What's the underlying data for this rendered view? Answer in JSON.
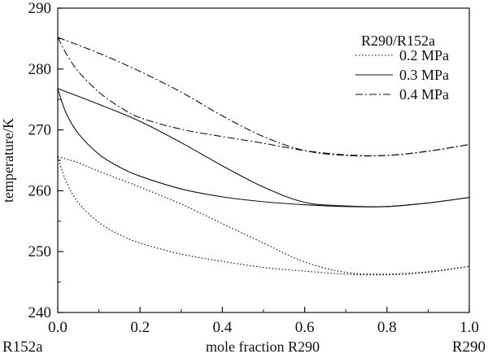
{
  "chart_data": {
    "type": "line",
    "xlabel": "mole fraction R290",
    "ylabel": "temperature/K",
    "xlim": [
      0.0,
      1.0
    ],
    "ylim": [
      240,
      290
    ],
    "xticks": [
      0.0,
      0.2,
      0.4,
      0.6,
      0.8,
      1.0
    ],
    "yticks": [
      240,
      250,
      260,
      270,
      280,
      290
    ],
    "x_tick_labels": [
      "0.0",
      "0.2",
      "0.4",
      "0.6",
      "0.8",
      "1.0"
    ],
    "y_tick_labels": [
      "240",
      "250",
      "260",
      "270",
      "280",
      "290"
    ],
    "x_end_labels": {
      "left": "R152a",
      "right": "R290"
    },
    "grid": false,
    "legend": {
      "title": "R290/R152a",
      "position": "top-right"
    },
    "series": [
      {
        "name": "0.2 MPa",
        "style": "dotted",
        "color": "#111111",
        "curves": [
          {
            "role": "dew",
            "x": [
              0.0,
              0.05,
              0.1,
              0.2,
              0.3,
              0.4,
              0.5,
              0.6,
              0.7,
              0.8,
              0.9,
              1.0
            ],
            "y": [
              265.6,
              264.6,
              263.2,
              260.6,
              257.8,
              254.6,
              251.4,
              248.3,
              246.6,
              246.3,
              246.7,
              247.6
            ]
          },
          {
            "role": "bubble",
            "x": [
              0.0,
              0.02,
              0.05,
              0.1,
              0.15,
              0.2,
              0.3,
              0.4,
              0.5,
              0.6,
              0.7,
              0.8,
              0.9,
              1.0
            ],
            "y": [
              265.6,
              261.6,
              258.0,
              254.8,
              252.8,
              251.4,
              249.6,
              248.4,
              247.4,
              246.8,
              246.3,
              246.2,
              246.6,
              247.6
            ]
          }
        ]
      },
      {
        "name": "0.3 MPa",
        "style": "solid",
        "color": "#111111",
        "curves": [
          {
            "role": "dew",
            "x": [
              0.0,
              0.1,
              0.2,
              0.3,
              0.4,
              0.5,
              0.6,
              0.7,
              0.8,
              0.9,
              1.0
            ],
            "y": [
              276.8,
              274.2,
              271.4,
              267.9,
              264.1,
              260.6,
              258.1,
              257.5,
              257.4,
              258.0,
              258.9
            ]
          },
          {
            "role": "bubble",
            "x": [
              0.0,
              0.02,
              0.05,
              0.1,
              0.15,
              0.2,
              0.3,
              0.4,
              0.5,
              0.6,
              0.7,
              0.8,
              0.9,
              1.0
            ],
            "y": [
              276.8,
              272.8,
              269.4,
              266.0,
              263.9,
              262.4,
              260.3,
              259.0,
              258.2,
              257.7,
              257.4,
              257.4,
              258.0,
              258.9
            ]
          }
        ]
      },
      {
        "name": "0.4 MPa",
        "style": "dash-dot",
        "color": "#111111",
        "curves": [
          {
            "role": "dew",
            "x": [
              0.0,
              0.1,
              0.2,
              0.3,
              0.4,
              0.5,
              0.6,
              0.7,
              0.8,
              0.9,
              1.0
            ],
            "y": [
              285.2,
              282.6,
              279.6,
              276.2,
              272.3,
              268.9,
              266.6,
              265.8,
              265.8,
              266.5,
              267.6
            ]
          },
          {
            "role": "bubble",
            "x": [
              0.0,
              0.02,
              0.05,
              0.1,
              0.15,
              0.2,
              0.3,
              0.4,
              0.5,
              0.6,
              0.7,
              0.8,
              0.9,
              1.0
            ],
            "y": [
              285.2,
              282.6,
              279.6,
              276.2,
              273.8,
              272.0,
              270.1,
              268.9,
              267.8,
              266.6,
              265.9,
              265.8,
              266.5,
              267.6
            ]
          }
        ]
      }
    ]
  }
}
